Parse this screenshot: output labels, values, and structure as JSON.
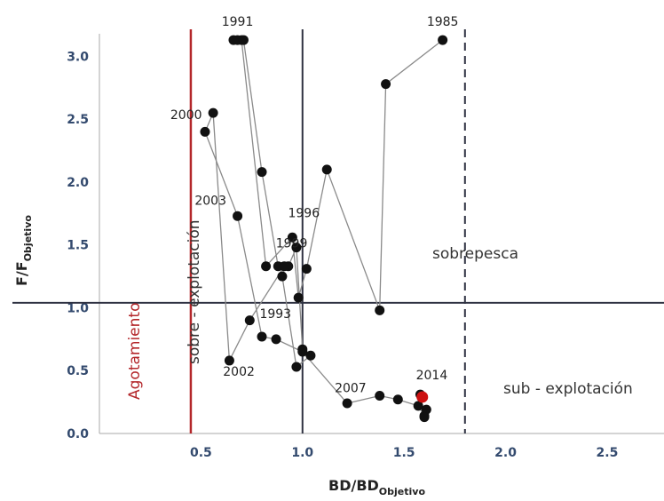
{
  "chart_data": {
    "type": "scatter",
    "xlabel": "BD/BD",
    "xlabel_sub": "Objetivo",
    "ylabel": "F/F",
    "ylabel_sub": "Objetivo",
    "xlim": [
      0.0,
      2.78
    ],
    "ylim": [
      0.0,
      3.18
    ],
    "x_ticks": [
      0.5,
      1.0,
      1.5,
      2.0,
      2.5
    ],
    "x_tick_labels": [
      "0.5",
      "1.0",
      "1.5",
      "2.0",
      "2.5"
    ],
    "y_ticks": [
      0.0,
      0.5,
      1.0,
      1.5,
      2.0,
      2.5,
      3.0
    ],
    "y_tick_labels": [
      "0.0",
      "0.5",
      "1.0",
      "1.5",
      "2.0",
      "2.5",
      "3.0"
    ],
    "reference_lines": {
      "agotamiento_x": 0.45,
      "bd_target_x": 1.0,
      "bd_upper_x": 1.8,
      "f_target_y": 1.04,
      "colors": {
        "agotamiento": "#b3262a",
        "solid": "#2f3242",
        "dashed": "#2f3242"
      }
    },
    "series": [
      {
        "color": "#111111",
        "x": [
          1.69,
          1.41,
          1.38,
          1.12,
          1.02,
          0.98,
          0.95,
          0.82,
          0.7,
          0.68,
          0.66,
          0.71,
          0.8,
          0.88,
          0.93,
          0.97,
          1.0,
          1.04,
          0.97,
          0.9,
          0.91,
          0.74,
          0.64,
          0.56,
          0.52,
          0.68,
          0.8,
          0.87,
          1.0,
          1.22,
          1.38,
          1.47,
          1.57,
          1.6,
          1.61,
          1.6,
          1.58
        ],
        "y": [
          3.13,
          2.78,
          0.98,
          2.1,
          1.31,
          1.08,
          1.56,
          1.33,
          3.13,
          3.13,
          3.13,
          3.13,
          2.08,
          1.33,
          1.33,
          1.48,
          0.67,
          0.62,
          0.53,
          1.25,
          1.33,
          0.9,
          0.58,
          2.55,
          2.4,
          1.73,
          0.77,
          0.75,
          0.65,
          0.24,
          0.3,
          0.27,
          0.22,
          0.14,
          0.19,
          0.13,
          0.31
        ]
      }
    ],
    "highlight_point": {
      "x": 1.59,
      "y": 0.29,
      "color": "#cc1111"
    },
    "year_labels": [
      {
        "text": "1985",
        "x": 1.69,
        "y": 3.13,
        "anchor": "above"
      },
      {
        "text": "1991",
        "x": 0.68,
        "y": 3.13,
        "anchor": "above"
      },
      {
        "text": "2000",
        "x": 0.54,
        "y": 2.5,
        "anchor": "left"
      },
      {
        "text": "2003",
        "x": 0.66,
        "y": 1.82,
        "anchor": "left"
      },
      {
        "text": "1996",
        "x": 0.92,
        "y": 1.72,
        "anchor": "right"
      },
      {
        "text": "1999",
        "x": 0.86,
        "y": 1.48,
        "anchor": "right"
      },
      {
        "text": "1993",
        "x": 0.78,
        "y": 0.92,
        "anchor": "right"
      },
      {
        "text": "2002",
        "x": 0.6,
        "y": 0.46,
        "anchor": "right"
      },
      {
        "text": "2007",
        "x": 1.15,
        "y": 0.33,
        "anchor": "right"
      },
      {
        "text": "2014",
        "x": 1.55,
        "y": 0.43,
        "anchor": "right"
      }
    ],
    "region_labels": {
      "agotamiento": "Agotamiento",
      "sobre_explotacion": "sobre - explotación",
      "sobrepesca": "sobrepesca",
      "sub_explotacion": "sub - explotación"
    }
  }
}
